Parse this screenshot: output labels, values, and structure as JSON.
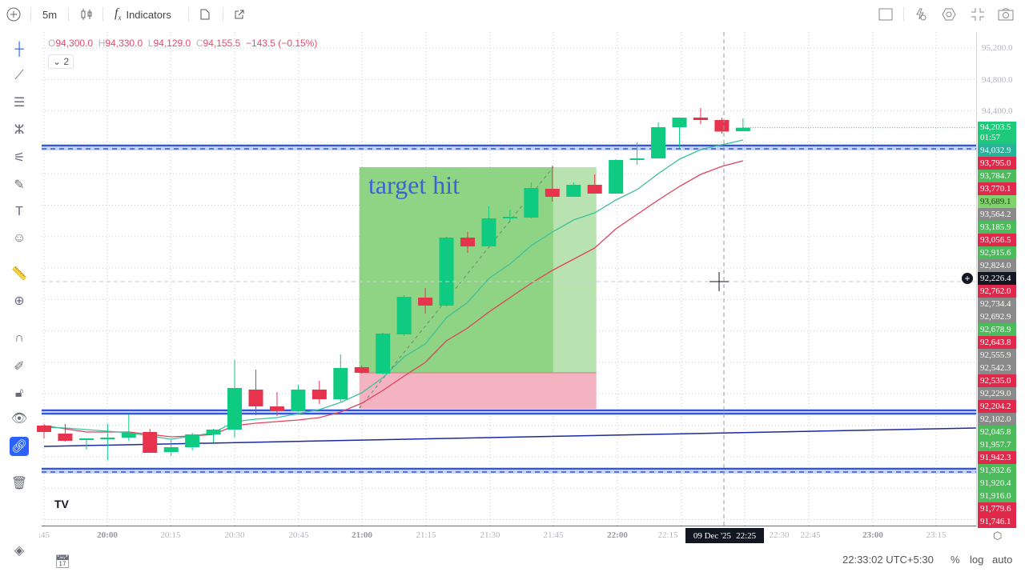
{
  "toolbar": {
    "interval": "5m",
    "indicators_label": "Indicators",
    "icons": [
      "plus-circle-icon",
      "candles-icon",
      "fx-icon",
      "template-icon",
      "external-icon",
      "square-icon",
      "lightning-icon",
      "gear-icon",
      "fullscreen-icon",
      "camera-icon"
    ]
  },
  "legend": {
    "o_key": "O",
    "o": "94,300.0",
    "h_key": "H",
    "h": "94,330.0",
    "l_key": "L",
    "l": "94,129.0",
    "c_key": "C",
    "c": "94,155.5",
    "change": "−143.5 (−0.15%)",
    "collapse": "2"
  },
  "annotation": {
    "text": "target hit",
    "color": "#3b63d6"
  },
  "price_axis": {
    "grid_labels": [
      "95,200.0",
      "94,800.0",
      "94,400.0"
    ],
    "tags": [
      {
        "text": "94,203.5",
        "sub": "01:57",
        "color": "#1ec97a"
      },
      {
        "text": "94,032.9",
        "color": "#26b39a"
      },
      {
        "text": "93,795.0",
        "color": "#e0284a"
      },
      {
        "text": "93,784.7",
        "color": "#4cbb5c"
      },
      {
        "text": "93,770.1",
        "color": "#e0284a"
      },
      {
        "text": "93,689.1",
        "color": "#7ed36a",
        "dark": true
      },
      {
        "text": "93,564.2",
        "color": "#8a8a8a"
      },
      {
        "text": "93,185.9",
        "color": "#4cbb5c"
      },
      {
        "text": "93,056.5",
        "color": "#e0284a"
      },
      {
        "text": "92,915.6",
        "color": "#4cbb5c"
      },
      {
        "text": "92,824.0",
        "color": "#8a8a8a"
      },
      {
        "text": "92,762.0",
        "color": "#e0284a"
      },
      {
        "text": "92,734.4",
        "color": "#8a8a8a"
      },
      {
        "text": "92,692.9",
        "color": "#8a8a8a"
      },
      {
        "text": "92,678.9",
        "color": "#4cbb5c"
      },
      {
        "text": "92,643.8",
        "color": "#e0284a"
      },
      {
        "text": "92,555.9",
        "color": "#8a8a8a"
      },
      {
        "text": "92,542.3",
        "color": "#8a8a8a"
      },
      {
        "text": "92,535.0",
        "color": "#e0284a"
      },
      {
        "text": "92,229.0",
        "color": "#8a8a8a"
      },
      {
        "text": "92,204.2",
        "color": "#e0284a"
      },
      {
        "text": "92,102.0",
        "color": "#8a8a8a"
      },
      {
        "text": "92,045.8",
        "color": "#4cbb5c"
      },
      {
        "text": "91,957.7",
        "color": "#4cbb5c"
      },
      {
        "text": "91,942.3",
        "color": "#e0284a"
      },
      {
        "text": "91,932.6",
        "color": "#4cbb5c"
      },
      {
        "text": "91,920.4",
        "color": "#4cbb5c"
      },
      {
        "text": "91,916.0",
        "color": "#4cbb5c"
      },
      {
        "text": "91,779.6",
        "color": "#e0284a"
      },
      {
        "text": "91,746.1",
        "color": "#e0284a"
      }
    ],
    "crosshair_price": "92,226.4"
  },
  "time_axis": {
    "labels": [
      ":45",
      "20:00",
      "20:15",
      "20:30",
      "20:45",
      "21:00",
      "21:15",
      "21:30",
      "21:45",
      "22:00",
      "22:15",
      "22:30",
      "22:45",
      "23:00",
      "23:15"
    ],
    "crosshair_date": "09 Dec '25",
    "crosshair_time": "22:25"
  },
  "status": {
    "clock": "22:33:02 UTC+5:30",
    "percent": "%",
    "log": "log",
    "auto": "auto"
  },
  "colors": {
    "up": "#0ecb81",
    "down": "#e8334f",
    "ma_fast": "#3fbf9a",
    "ma_slow": "#e0425a",
    "lines": "#3355dd"
  },
  "chart_data": {
    "type": "candlestick",
    "interval": "5m",
    "first_time": "19:45",
    "candles": [
      [
        90480,
        90500,
        90320,
        90400
      ],
      [
        90380,
        90500,
        90280,
        90290
      ],
      [
        90300,
        90320,
        90180,
        90320
      ],
      [
        90320,
        90500,
        90050,
        90330
      ],
      [
        90330,
        90620,
        90290,
        90390
      ],
      [
        90400,
        90440,
        90140,
        90140
      ],
      [
        90150,
        90300,
        90100,
        90210
      ],
      [
        90210,
        90390,
        90170,
        90370
      ],
      [
        90370,
        90440,
        90270,
        90430
      ],
      [
        90430,
        91300,
        90330,
        90950
      ],
      [
        90930,
        91180,
        90610,
        90720
      ],
      [
        90720,
        90900,
        90600,
        90660
      ],
      [
        90660,
        90990,
        90650,
        90930
      ],
      [
        90930,
        91040,
        90750,
        90810
      ],
      [
        90810,
        91370,
        90780,
        91200
      ],
      [
        91210,
        91230,
        91130,
        91140
      ],
      [
        91130,
        91640,
        91120,
        91630
      ],
      [
        91620,
        92110,
        91600,
        92090
      ],
      [
        92080,
        92200,
        91880,
        91980
      ],
      [
        91980,
        92840,
        91970,
        92830
      ],
      [
        92830,
        92900,
        92640,
        92720
      ],
      [
        92720,
        93220,
        92720,
        93070
      ],
      [
        93070,
        93180,
        93020,
        93090
      ],
      [
        93080,
        93520,
        93070,
        93450
      ],
      [
        93440,
        93730,
        93280,
        93340
      ],
      [
        93340,
        93520,
        93340,
        93490
      ],
      [
        93490,
        93620,
        93380,
        93380
      ],
      [
        93380,
        93810,
        93380,
        93800
      ],
      [
        93800,
        94020,
        93740,
        93820
      ],
      [
        93820,
        94270,
        93820,
        94210
      ],
      [
        94210,
        94330,
        93950,
        94330
      ],
      [
        94330,
        94450,
        94250,
        94300
      ],
      [
        94300,
        94330,
        94129,
        94155.5
      ],
      [
        94160,
        94320,
        94160,
        94203.5
      ]
    ],
    "ma_fast": [
      90460,
      90450,
      90430,
      90410,
      90390,
      90350,
      90310,
      90350,
      90390,
      90530,
      90560,
      90580,
      90630,
      90680,
      90770,
      90890,
      91080,
      91340,
      91500,
      91830,
      92020,
      92320,
      92500,
      92730,
      92900,
      93050,
      93140,
      93300,
      93430,
      93630,
      93810,
      93930,
      93990,
      94050
    ],
    "ma_slow": [
      90480,
      90440,
      90400,
      90400,
      90400,
      90370,
      90340,
      90350,
      90370,
      90480,
      90510,
      90530,
      90550,
      90580,
      90650,
      90760,
      90920,
      91100,
      91270,
      91540,
      91700,
      91900,
      92080,
      92260,
      92420,
      92560,
      92700,
      92940,
      93120,
      93300,
      93470,
      93620,
      93720,
      93790
    ],
    "horizontal_lines": [
      93960,
      90650,
      89920
    ],
    "trend_line": {
      "from": [
        0,
        90220
      ],
      "to": [
        44,
        90450
      ]
    },
    "long_position": {
      "entry": 91140,
      "target": 93710,
      "stop": 90680,
      "start_index": 15,
      "end_index": 26,
      "filled_until_index": 24
    },
    "ylim": [
      89380,
      95400
    ]
  }
}
